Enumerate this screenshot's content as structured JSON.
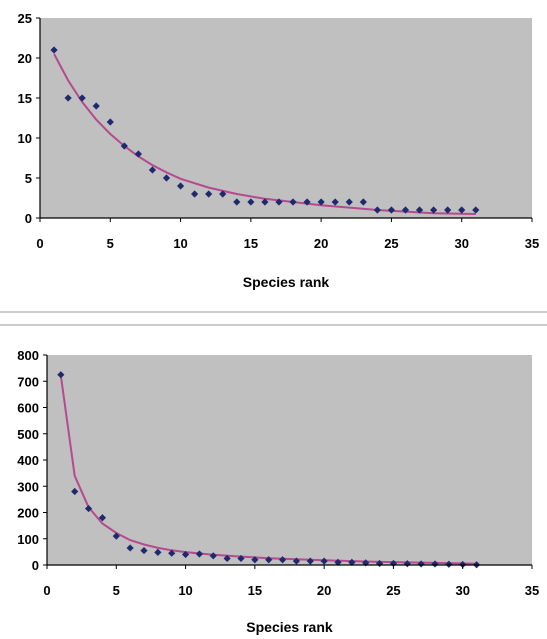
{
  "chart_data": [
    {
      "type": "scatter",
      "title": "",
      "xlabel": "Species rank",
      "ylabel": "",
      "xlim": [
        0,
        35
      ],
      "ylim": [
        0,
        25
      ],
      "xticks": [
        0,
        5,
        10,
        15,
        20,
        25,
        30,
        35
      ],
      "yticks": [
        0,
        5,
        10,
        15,
        20,
        25
      ],
      "grid": false,
      "legend": "none",
      "plot_bg": "#c0c0c0",
      "marker_color": "#1f2a6e",
      "fit_color": "#b44a8f",
      "series": [
        {
          "kind": "points",
          "x": [
            1,
            2,
            3,
            4,
            5,
            6,
            7,
            8,
            9,
            10,
            11,
            12,
            13,
            14,
            15,
            16,
            17,
            18,
            19,
            20,
            21,
            22,
            23,
            24,
            25,
            26,
            27,
            28,
            29,
            30,
            31
          ],
          "values": [
            21,
            15,
            15,
            14,
            12,
            9,
            8,
            6,
            5,
            4,
            3,
            3,
            3,
            2,
            2,
            2,
            2,
            2,
            2,
            2,
            2,
            2,
            2,
            1,
            1,
            1,
            1,
            1,
            1,
            1,
            1
          ]
        },
        {
          "kind": "fit",
          "x": [
            1,
            2,
            3,
            4,
            5,
            6,
            7,
            8,
            9,
            10,
            12,
            14,
            16,
            18,
            20,
            22,
            24,
            26,
            28,
            31
          ],
          "values": [
            20.5,
            17.2,
            14.5,
            12.3,
            10.5,
            9.0,
            7.7,
            6.6,
            5.7,
            4.9,
            3.8,
            3.0,
            2.4,
            2.0,
            1.6,
            1.3,
            1.0,
            0.8,
            0.6,
            0.5
          ]
        }
      ]
    },
    {
      "type": "scatter",
      "title": "",
      "xlabel": "Species rank",
      "ylabel": "",
      "xlim": [
        0,
        35
      ],
      "ylim": [
        0,
        800
      ],
      "xticks": [
        0,
        5,
        10,
        15,
        20,
        25,
        30,
        35
      ],
      "yticks": [
        0,
        100,
        200,
        300,
        400,
        500,
        600,
        700,
        800
      ],
      "grid": false,
      "legend": "none",
      "plot_bg": "#c0c0c0",
      "marker_color": "#1f2a6e",
      "fit_color": "#b44a8f",
      "series": [
        {
          "kind": "points",
          "x": [
            1,
            2,
            3,
            4,
            5,
            6,
            7,
            8,
            9,
            10,
            11,
            12,
            13,
            14,
            15,
            16,
            17,
            18,
            19,
            20,
            21,
            22,
            23,
            24,
            25,
            26,
            27,
            28,
            29,
            30,
            31
          ],
          "values": [
            725,
            280,
            215,
            180,
            110,
            65,
            55,
            48,
            45,
            40,
            42,
            35,
            25,
            25,
            20,
            20,
            20,
            15,
            15,
            15,
            10,
            10,
            8,
            6,
            6,
            5,
            4,
            4,
            3,
            2,
            1
          ]
        },
        {
          "kind": "fit",
          "x": [
            1,
            2,
            3,
            4,
            5,
            6,
            7,
            8,
            9,
            10,
            12,
            14,
            16,
            18,
            20,
            22,
            24,
            26,
            28,
            31
          ],
          "values": [
            720,
            340,
            220,
            158,
            122,
            95,
            78,
            65,
            56,
            49,
            39,
            32,
            26,
            22,
            18,
            15,
            12,
            10,
            8,
            5
          ]
        }
      ]
    }
  ]
}
